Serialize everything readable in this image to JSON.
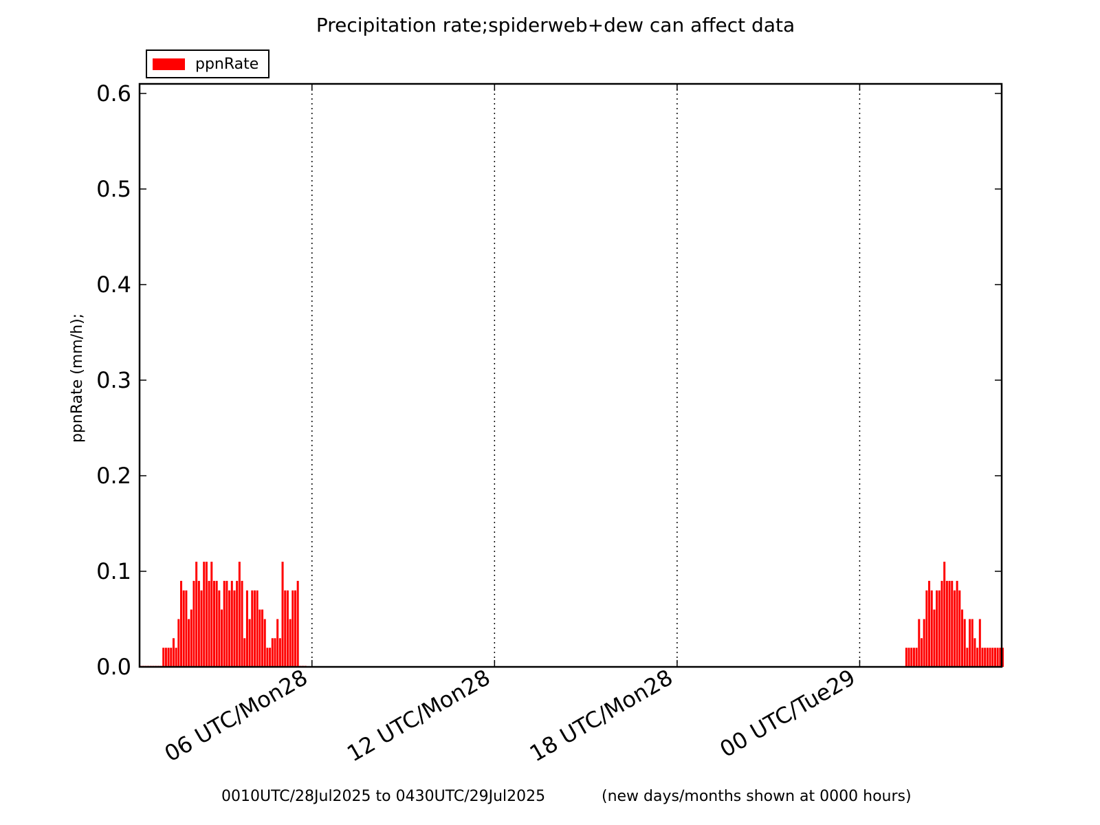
{
  "chart_data": {
    "type": "bar",
    "title": "Precipitation rate;spiderweb+dew can affect data",
    "ylabel": "ppnRate  (mm/h);",
    "xlabel": "",
    "legend": {
      "entries": [
        "ppnRate"
      ],
      "placement": "top-left, above plot"
    },
    "ylim": [
      0.0,
      0.61
    ],
    "yticks": [
      "0.0",
      "0.1",
      "0.2",
      "0.3",
      "0.4",
      "0.5",
      "0.6"
    ],
    "xlim_hours": [
      0.1667,
      28.5
    ],
    "xtick_hours": [
      5.833,
      11.833,
      17.833,
      23.833
    ],
    "xtick_labels": [
      "06 UTC/Mon28",
      "12 UTC/Mon28",
      "18 UTC/Mon28",
      "00 UTC/Tue29"
    ],
    "grid": "vertical dotted lines at x ticks",
    "color": "#ff0000",
    "bar_interval_minutes": 5,
    "series": [
      {
        "name": "ppnRate",
        "segments": [
          {
            "start": "0010UTC/28Jul2025",
            "start_hour": 0.1667,
            "values": [
              0,
              0,
              0,
              0,
              0,
              0,
              0,
              0,
              0,
              0.02,
              0.02,
              0.02,
              0.02,
              0.03,
              0.02,
              0.05,
              0.09,
              0.08,
              0.08,
              0.05,
              0.06,
              0.09,
              0.11,
              0.09,
              0.08,
              0.11,
              0.11,
              0.09,
              0.11,
              0.09,
              0.09,
              0.08,
              0.06,
              0.09,
              0.09,
              0.08,
              0.09,
              0.08,
              0.09,
              0.11,
              0.09,
              0.03,
              0.08,
              0.05,
              0.08,
              0.08,
              0.08,
              0.06,
              0.06,
              0.05,
              0.02,
              0.02,
              0.03,
              0.03,
              0.05,
              0.03,
              0.11,
              0.08,
              0.08,
              0.05,
              0.08,
              0.08,
              0.09,
              0,
              0,
              0
            ]
          },
          {
            "start": "0114UTC/29Jul2025",
            "start_hour": 25.3333,
            "values": [
              0.02,
              0.02,
              0.02,
              0.02,
              0.02,
              0.05,
              0.03,
              0.05,
              0.08,
              0.09,
              0.08,
              0.06,
              0.08,
              0.08,
              0.09,
              0.11,
              0.09,
              0.09,
              0.09,
              0.08,
              0.09,
              0.08,
              0.06,
              0.05,
              0.02,
              0.05,
              0.05,
              0.03,
              0.02,
              0.05,
              0.02,
              0.02,
              0.02,
              0.02,
              0.02,
              0.02,
              0.02,
              0.02,
              0.02
            ]
          }
        ]
      }
    ]
  },
  "footer": {
    "range": "0010UTC/28Jul2025 to 0430UTC/29Jul2025",
    "note": "(new days/months shown at 0000 hours)"
  }
}
